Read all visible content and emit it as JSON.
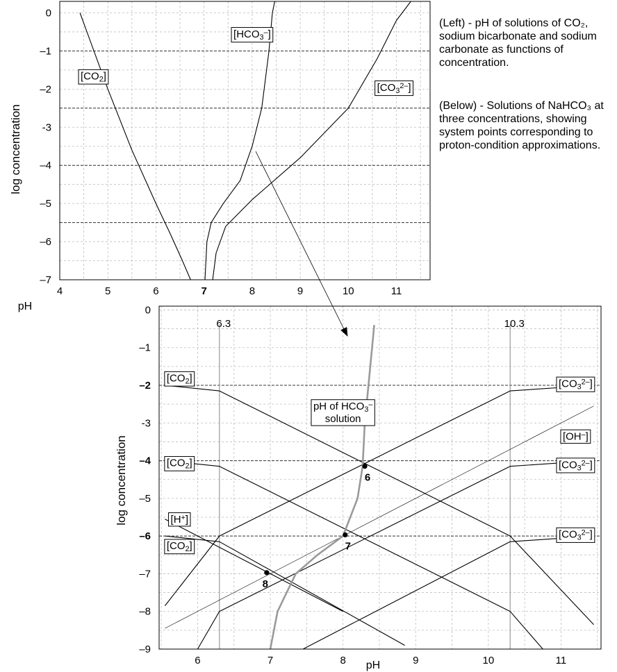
{
  "captions": {
    "left": "(Left) - pH of solutions of CO₂, sodium bicarbonate and sodium carbonate as functions of concentration.",
    "below": "(Below) - Solutions of NaHCO₃ at three concentrations, showing system points corresponding to proton-condition approximations."
  },
  "chart_data": [
    {
      "type": "line",
      "id": "top",
      "xlabel": "pH",
      "ylabel": "log concentration",
      "xlim": [
        4,
        11.7
      ],
      "ylim": [
        -7,
        0.3
      ],
      "xticks": [
        "4",
        "5",
        "6",
        "7",
        "8",
        "9",
        "10",
        "11"
      ],
      "xtick_values": [
        4,
        5,
        6,
        7,
        8,
        9,
        10,
        11
      ],
      "bold_xtick": "7",
      "yticks": [
        "0",
        "–1",
        "–2",
        "-3",
        "–4",
        "–5",
        "–6",
        "–7"
      ],
      "ytick_values": [
        0,
        -1,
        -2,
        -3,
        -4,
        -5,
        -6,
        -7
      ],
      "grid": true,
      "dashed_hlines": [
        -1,
        -2.5,
        -4,
        -5.5
      ],
      "series": [
        {
          "name": "[CO₂]",
          "x": [
            4.42,
            5.0,
            5.5,
            6.0,
            6.3,
            6.55,
            6.72
          ],
          "y": [
            0,
            -2.0,
            -3.6,
            -5.0,
            -5.8,
            -6.5,
            -7.0
          ]
        },
        {
          "name": "[HCO₃⁻]",
          "x": [
            7.02,
            7.06,
            7.15,
            7.4,
            7.75,
            8.0,
            8.2,
            8.35,
            8.42,
            8.47
          ],
          "y": [
            -7.0,
            -6.0,
            -5.5,
            -5.0,
            -4.4,
            -3.5,
            -2.5,
            -1.0,
            0.0,
            0.3
          ]
        },
        {
          "name": "[CO₃²⁻]",
          "x": [
            7.18,
            7.25,
            7.45,
            8.0,
            9.0,
            10.0,
            10.6,
            11.0,
            11.3
          ],
          "y": [
            -7.0,
            -6.3,
            -5.6,
            -4.9,
            -3.8,
            -2.5,
            -1.2,
            -0.2,
            0.3
          ]
        }
      ],
      "labels": [
        {
          "text": "[CO₂]",
          "x": 4.7,
          "y": -1.65
        },
        {
          "text": "[HCO₃⁻]",
          "x": 8.0,
          "y": -0.55
        },
        {
          "text": "[CO₃²⁻]",
          "x": 10.95,
          "y": -1.95
        }
      ]
    },
    {
      "type": "line",
      "id": "bottom",
      "xlabel": "pH",
      "ylabel": "log concentration",
      "xlim": [
        5.47,
        11.55
      ],
      "ylim": [
        -9,
        0.1
      ],
      "xticks": [
        "6",
        "7",
        "8",
        "9",
        "10",
        "11"
      ],
      "xtick_values": [
        6,
        7,
        8,
        9,
        10,
        11
      ],
      "yticks": [
        "0",
        "–1",
        "–2",
        "-3",
        "–4",
        "–5",
        "–6",
        "–7",
        "–8",
        "–9"
      ],
      "ytick_values": [
        0,
        -1,
        -2,
        -3,
        -4,
        -5,
        -6,
        -7,
        -8,
        -9
      ],
      "bold_yticks": [
        "–2",
        "–4",
        "–6"
      ],
      "grid": true,
      "dashed_hlines": [
        -2,
        -4,
        -6
      ],
      "vlines": [
        {
          "label": "6.3",
          "x": 6.3
        },
        {
          "label": "10.3",
          "x": 10.3
        }
      ],
      "series": [
        {
          "name": "[CO₂] (10⁻²)",
          "x": [
            5.55,
            6.3,
            10.3,
            11.45
          ],
          "y": [
            -2.0,
            -2.15,
            -6.0,
            -8.35
          ]
        },
        {
          "name": "[CO₃²⁻] (10⁻²)",
          "x": [
            5.55,
            6.3,
            10.3,
            11.45
          ],
          "y": [
            -7.85,
            -6.0,
            -2.15,
            -2.0
          ]
        },
        {
          "name": "[CO₂] (10⁻⁴)",
          "x": [
            5.55,
            6.3,
            10.3,
            10.75
          ],
          "y": [
            -4.0,
            -4.15,
            -8.0,
            -9.0
          ]
        },
        {
          "name": "[CO₃²⁻] (10⁻⁴)",
          "x": [
            6.0,
            6.3,
            10.3,
            11.45
          ],
          "y": [
            -9.0,
            -8.0,
            -4.15,
            -4.0
          ]
        },
        {
          "name": "[CO₂] (10⁻⁶)",
          "x": [
            5.55,
            6.3,
            8.85
          ],
          "y": [
            -6.0,
            -6.15,
            -8.9
          ]
        },
        {
          "name": "[CO₃²⁻] (10⁻⁶)",
          "x": [
            7.45,
            10.3,
            11.45
          ],
          "y": [
            -9.0,
            -6.15,
            -6.0
          ]
        },
        {
          "name": "[H⁺]",
          "x": [
            5.55,
            8.0
          ],
          "y": [
            -5.55,
            -8.0
          ]
        },
        {
          "name": "[OH⁻]",
          "x": [
            5.55,
            11.45
          ],
          "y": [
            -8.45,
            -2.55
          ],
          "thin": true
        },
        {
          "name": "pH of HCO₃⁻ solution",
          "x": [
            7.0,
            7.1,
            7.35,
            7.65,
            8.0,
            8.2,
            8.27,
            8.3,
            8.35,
            8.4,
            8.43
          ],
          "y": [
            -9.0,
            -8.0,
            -7.0,
            -6.5,
            -6.0,
            -5.0,
            -4.15,
            -3.0,
            -2.0,
            -1.0,
            -0.4
          ],
          "gray": true
        }
      ],
      "points": [
        {
          "label": "6",
          "x": 8.3,
          "y": -4.15
        },
        {
          "label": "7",
          "x": 8.03,
          "y": -5.97
        },
        {
          "label": "8",
          "x": 6.95,
          "y": -6.97
        }
      ],
      "labels": [
        {
          "text": "[CO₂]",
          "x": 5.75,
          "y": -1.8
        },
        {
          "text": "[CO₂]",
          "x": 5.75,
          "y": -4.05
        },
        {
          "text": "[H⁺]",
          "x": 5.75,
          "y": -5.55
        },
        {
          "text": "[CO₂]",
          "x": 5.75,
          "y": -6.25
        },
        {
          "text": "[CO₃²⁻]",
          "x": 11.2,
          "y": -1.95
        },
        {
          "text": "[OH⁻]",
          "x": 11.2,
          "y": -3.35
        },
        {
          "text": "[CO₃²⁻]",
          "x": 11.2,
          "y": -4.1
        },
        {
          "text": "[CO₃²⁻]",
          "x": 11.2,
          "y": -5.95
        },
        {
          "text": "pH of HCO₃⁻",
          "text2": "solution",
          "x": 8.0,
          "y": -2.55
        }
      ]
    }
  ]
}
